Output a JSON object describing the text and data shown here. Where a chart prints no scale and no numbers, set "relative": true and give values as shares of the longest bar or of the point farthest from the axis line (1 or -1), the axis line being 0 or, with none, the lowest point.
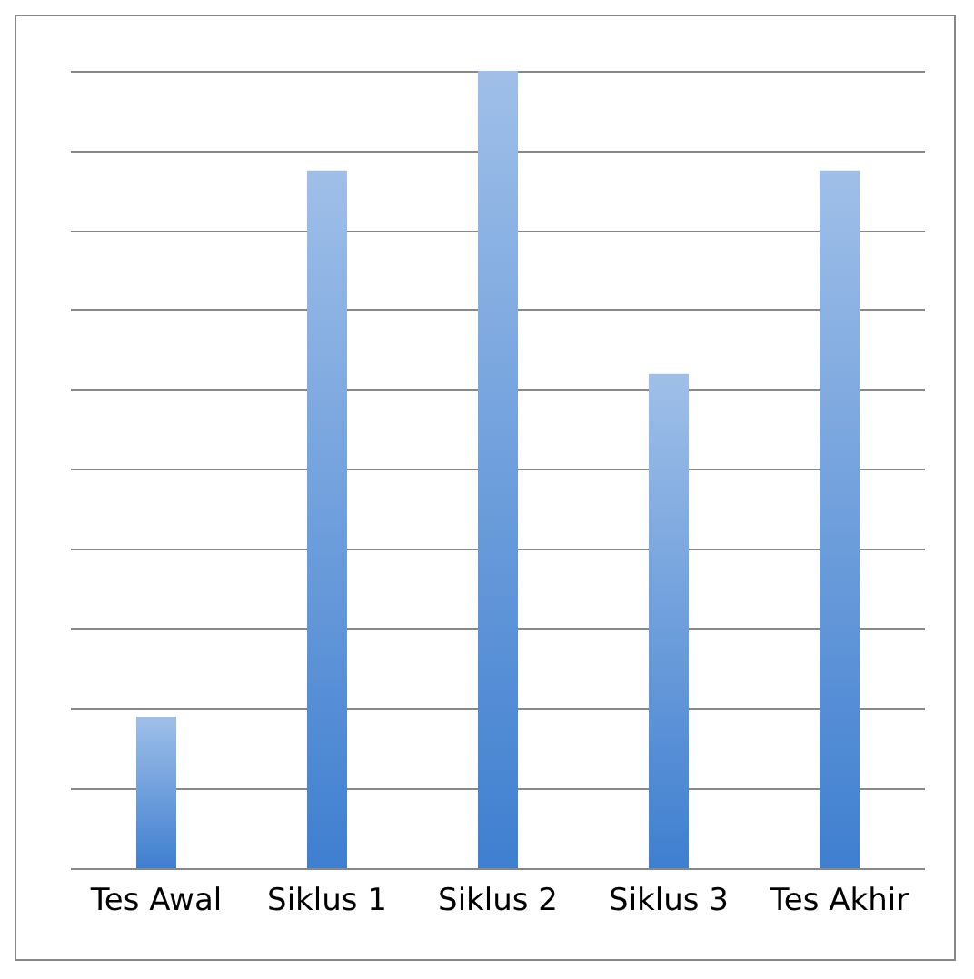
{
  "chart_data": {
    "type": "bar",
    "relative": true,
    "categories": [
      "Tes Awal",
      "Siklus 1",
      "Siklus 2",
      "Siklus 3",
      "Tes Akhir"
    ],
    "values": [
      0.19,
      0.875,
      1,
      0.62,
      0.875
    ],
    "color": "#3f7fd0",
    "grid": true
  }
}
